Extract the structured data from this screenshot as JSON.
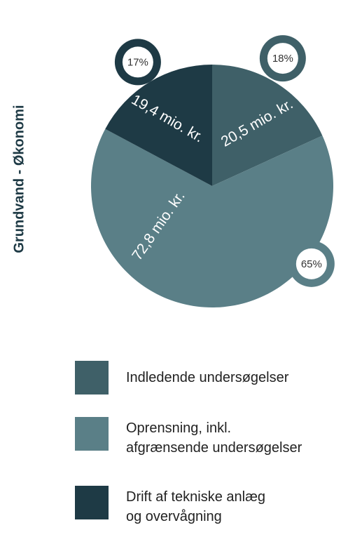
{
  "chart_data": {
    "type": "pie",
    "y_label": "Grundvand - Økonomi",
    "categories": [
      "Indledende undersøgelser",
      "Oprensning, inkl.\nafgrænsende undersøgelser",
      "Drift af tekniske anlæg\nog overvågning"
    ],
    "values": [
      20.5,
      72.8,
      19.4
    ],
    "value_labels": [
      "20,5 mio. kr.",
      "72,8 mio. kr.",
      "19,4 mio. kr."
    ],
    "shares": [
      18,
      65,
      17
    ],
    "share_labels": [
      "18%",
      "65%",
      "17%"
    ],
    "colors": [
      "#3f6068",
      "#5a7f87",
      "#1e3a45"
    ]
  }
}
